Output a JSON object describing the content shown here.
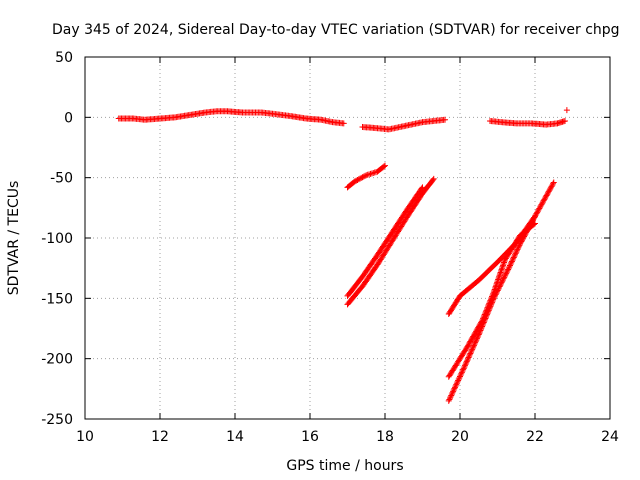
{
  "chart_data": {
    "type": "scatter",
    "title": "Day 345 of 2024, Sidereal Day-to-day VTEC variation (SDTVAR) for receiver chpg",
    "xlabel": "GPS time / hours",
    "ylabel": "SDTVAR / TECUs",
    "xlim": [
      10,
      24
    ],
    "ylim": [
      -250,
      50
    ],
    "x_ticks": [
      10,
      12,
      14,
      16,
      18,
      20,
      22,
      24
    ],
    "y_ticks": [
      -250,
      -200,
      -150,
      -100,
      -50,
      0,
      50
    ],
    "grid": true,
    "marker": "+",
    "color": "#ff0000",
    "segments": [
      [
        [
          10.9,
          -1
        ],
        [
          11.3,
          -1
        ],
        [
          11.6,
          -2
        ],
        [
          12,
          -1
        ],
        [
          12.4,
          0
        ],
        [
          12.8,
          2
        ],
        [
          13.2,
          4
        ],
        [
          13.5,
          5
        ],
        [
          13.8,
          5
        ],
        [
          14.2,
          4
        ],
        [
          14.7,
          4
        ],
        [
          15,
          3
        ],
        [
          15.5,
          1
        ],
        [
          15.9,
          -1
        ],
        [
          16.3,
          -2
        ],
        [
          16.6,
          -4
        ],
        [
          16.9,
          -5
        ]
      ],
      [
        [
          17.4,
          -8
        ],
        [
          17.8,
          -9
        ],
        [
          18.1,
          -10
        ],
        [
          18.4,
          -8
        ],
        [
          18.7,
          -6
        ],
        [
          19,
          -4
        ],
        [
          19.3,
          -3
        ],
        [
          19.6,
          -2
        ]
      ],
      [
        [
          20.8,
          -3
        ],
        [
          21.1,
          -4
        ],
        [
          21.5,
          -5
        ],
        [
          21.9,
          -5
        ],
        [
          22.3,
          -6
        ],
        [
          22.6,
          -5
        ],
        [
          22.8,
          -3
        ]
      ],
      [
        [
          22.85,
          6
        ]
      ],
      [
        [
          17.0,
          -58
        ],
        [
          17.2,
          -53
        ],
        [
          17.5,
          -48
        ],
        [
          17.8,
          -45
        ],
        [
          18.0,
          -40
        ]
      ],
      [
        [
          17.0,
          -155
        ],
        [
          17.4,
          -140
        ],
        [
          17.8,
          -122
        ],
        [
          18.2,
          -102
        ],
        [
          18.6,
          -82
        ],
        [
          19.0,
          -63
        ],
        [
          19.3,
          -51
        ]
      ],
      [
        [
          17.0,
          -148
        ],
        [
          17.4,
          -132
        ],
        [
          17.8,
          -114
        ],
        [
          18.2,
          -95
        ],
        [
          18.6,
          -76
        ],
        [
          19.0,
          -58
        ]
      ],
      [
        [
          19.7,
          -163
        ],
        [
          20.0,
          -148
        ],
        [
          20.5,
          -135
        ],
        [
          21.0,
          -120
        ],
        [
          21.5,
          -104
        ],
        [
          22.0,
          -82
        ],
        [
          22.5,
          -54
        ]
      ],
      [
        [
          19.7,
          -235
        ],
        [
          20.1,
          -208
        ],
        [
          20.5,
          -180
        ],
        [
          20.9,
          -150
        ],
        [
          21.3,
          -125
        ],
        [
          21.6,
          -105
        ],
        [
          22.0,
          -82
        ]
      ],
      [
        [
          19.7,
          -215
        ],
        [
          20.2,
          -190
        ],
        [
          20.6,
          -168
        ],
        [
          20.9,
          -145
        ],
        [
          21.2,
          -118
        ],
        [
          21.6,
          -98
        ],
        [
          22.0,
          -88
        ]
      ]
    ]
  }
}
